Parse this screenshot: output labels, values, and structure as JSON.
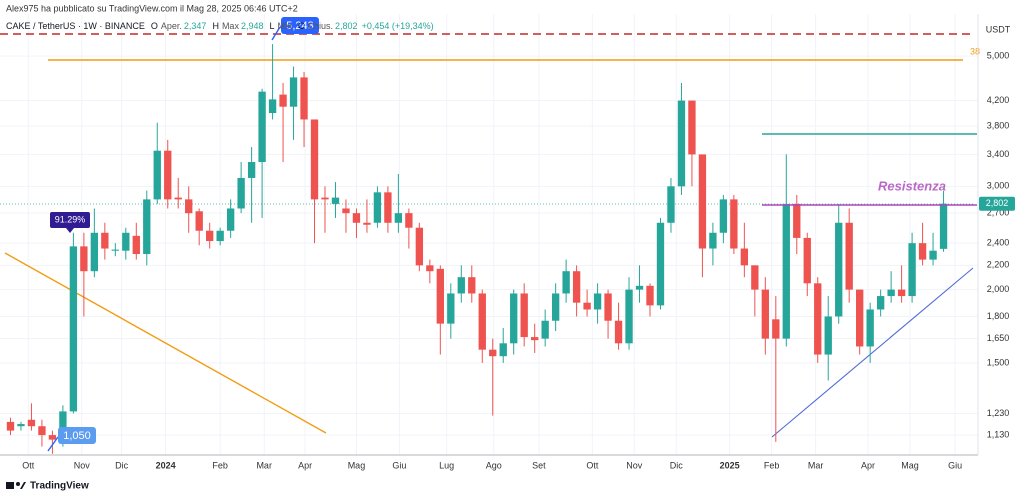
{
  "header": {
    "author_line": "Alex975 ha pubblicato su TradingView.com il Mag 28, 2025 06:46 UTC+2",
    "ohlc": [
      {
        "key": "O",
        "label": "Aper.",
        "value": "2,347"
      },
      {
        "key": "H",
        "label": "Max",
        "value": "2,948"
      },
      {
        "key": "L",
        "label": "Min",
        "value": ""
      },
      {
        "key": "C",
        "label": "Chius.",
        "value": "2,802"
      }
    ],
    "change": "+0,454 (+19,34%)"
  },
  "footer": {
    "brand": "TradingView"
  },
  "chart_data": {
    "type": "candlestick",
    "title": "CAKE / TetherUS · 1W · BINANCE",
    "y_axis_unit": "USDT",
    "up_color": "#26a69a",
    "down_color": "#ef5350",
    "log_scale": true,
    "grid": true,
    "open": [
      1.19,
      1.17,
      1.2,
      1.17,
      1.13,
      1.11,
      1.24,
      2.37,
      2.15,
      2.5,
      2.33,
      2.33,
      2.47,
      2.3,
      2.85,
      3.45,
      2.87,
      2.85,
      2.72,
      2.52,
      2.42,
      2.52,
      2.75,
      3.1,
      3.3,
      4.0,
      4.3,
      4.1,
      4.6,
      3.9,
      2.87,
      2.8,
      2.75,
      2.7,
      2.6,
      2.6,
      2.93,
      2.6,
      2.7,
      2.55,
      2.2,
      2.17,
      1.75,
      1.97,
      2.1,
      1.97,
      1.58,
      1.54,
      1.62,
      1.97,
      1.66,
      1.65,
      1.77,
      1.97,
      2.15,
      1.9,
      1.85,
      1.97,
      1.77,
      1.62,
      2.0,
      2.03,
      1.88,
      2.6,
      3.0,
      4.2,
      3.4,
      2.35,
      2.5,
      2.85,
      2.35,
      2.2,
      2.0,
      1.78,
      1.65,
      2.8,
      2.45,
      2.05,
      1.55,
      1.8,
      2.6,
      2.0,
      1.6,
      1.85,
      1.95,
      2.0,
      1.95,
      2.4,
      2.25,
      2.347
    ],
    "high": [
      1.21,
      1.19,
      1.28,
      1.2,
      1.15,
      1.27,
      2.5,
      2.5,
      2.75,
      2.6,
      2.4,
      2.55,
      2.6,
      2.95,
      3.85,
      3.6,
      3.1,
      3.0,
      2.75,
      2.6,
      2.55,
      2.85,
      3.3,
      3.5,
      4.4,
      5.243,
      4.5,
      4.8,
      4.7,
      3.9,
      3.0,
      3.05,
      2.85,
      2.75,
      2.85,
      3.0,
      3.0,
      3.15,
      2.75,
      2.6,
      2.25,
      2.2,
      2.05,
      2.2,
      2.2,
      2.0,
      1.65,
      1.72,
      2.0,
      2.05,
      1.75,
      1.85,
      2.05,
      2.25,
      2.2,
      2.0,
      2.05,
      2.0,
      1.9,
      2.1,
      2.2,
      2.05,
      2.65,
      3.1,
      4.5,
      4.2,
      3.4,
      2.6,
      2.9,
      2.9,
      2.6,
      2.2,
      2.1,
      1.95,
      3.4,
      2.9,
      2.5,
      2.1,
      1.95,
      2.8,
      2.75,
      2.0,
      1.9,
      2.0,
      2.15,
      2.2,
      2.5,
      2.6,
      2.5,
      2.948
    ],
    "low": [
      1.13,
      1.15,
      1.15,
      1.08,
      1.05,
      1.08,
      1.23,
      1.8,
      2.1,
      2.25,
      2.28,
      2.25,
      2.25,
      2.2,
      2.8,
      2.75,
      2.75,
      2.5,
      2.38,
      2.35,
      2.38,
      2.45,
      2.7,
      2.6,
      2.65,
      3.9,
      3.3,
      3.6,
      3.5,
      2.4,
      2.5,
      2.65,
      2.5,
      2.45,
      2.5,
      2.55,
      2.5,
      2.5,
      2.35,
      2.15,
      2.05,
      1.55,
      1.65,
      1.9,
      1.9,
      1.5,
      1.22,
      1.5,
      1.55,
      1.6,
      1.56,
      1.6,
      1.7,
      1.9,
      1.8,
      1.8,
      1.75,
      1.65,
      1.58,
      1.58,
      1.9,
      1.8,
      1.85,
      2.5,
      2.9,
      3.0,
      2.1,
      2.2,
      2.4,
      2.3,
      2.1,
      1.8,
      1.55,
      1.1,
      1.6,
      2.3,
      1.95,
      1.5,
      1.4,
      1.75,
      1.9,
      1.55,
      1.5,
      1.8,
      1.9,
      1.9,
      1.9,
      2.2,
      2.2,
      2.32
    ],
    "close": [
      1.15,
      1.18,
      1.17,
      1.13,
      1.11,
      1.24,
      2.37,
      2.15,
      2.5,
      2.35,
      2.34,
      2.5,
      2.3,
      2.85,
      3.45,
      2.85,
      2.85,
      2.7,
      2.52,
      2.42,
      2.52,
      2.75,
      3.1,
      3.3,
      4.35,
      4.22,
      4.1,
      4.6,
      3.9,
      2.85,
      2.85,
      2.87,
      2.7,
      2.6,
      2.58,
      2.93,
      2.6,
      2.7,
      2.55,
      2.2,
      2.15,
      1.75,
      1.97,
      2.1,
      1.97,
      1.58,
      1.54,
      1.62,
      1.97,
      1.66,
      1.64,
      1.77,
      1.97,
      2.15,
      1.9,
      1.85,
      1.97,
      1.77,
      1.62,
      2.0,
      2.03,
      1.88,
      2.6,
      3.0,
      4.2,
      3.4,
      2.35,
      2.5,
      2.85,
      2.35,
      2.2,
      2.0,
      1.65,
      1.65,
      2.8,
      2.45,
      2.05,
      1.55,
      1.8,
      2.6,
      2.0,
      1.6,
      1.85,
      1.95,
      2.0,
      1.95,
      2.4,
      2.25,
      2.33,
      2.802
    ],
    "last_price_label": "2,802",
    "xlim": [
      -1,
      92
    ],
    "ylim": [
      1.045,
      5.9
    ],
    "yticks": [
      {
        "value": 5,
        "label": "5,000"
      },
      {
        "value": 4.2,
        "label": "4,200"
      },
      {
        "value": 3.8,
        "label": "3,800"
      },
      {
        "value": 3.4,
        "label": "3,400"
      },
      {
        "value": 3,
        "label": "3,000"
      },
      {
        "value": 2.7,
        "label": "2,700"
      },
      {
        "value": 2.4,
        "label": "2,400"
      },
      {
        "value": 2.2,
        "label": "2,200"
      },
      {
        "value": 2,
        "label": "2,000"
      },
      {
        "value": 1.8,
        "label": "1,800"
      },
      {
        "value": 1.65,
        "label": "1,650"
      },
      {
        "value": 1.5,
        "label": "1,500"
      },
      {
        "value": 1.23,
        "label": "1,230"
      },
      {
        "value": 1.13,
        "label": "1,130"
      }
    ],
    "xticks": [
      {
        "value": 1.7,
        "label": "Ott"
      },
      {
        "value": 6.8,
        "label": "Nov"
      },
      {
        "value": 10.6,
        "label": "Dic"
      },
      {
        "value": 14.8,
        "label": "2024"
      },
      {
        "value": 20.0,
        "label": "Feb"
      },
      {
        "value": 24.2,
        "label": "Mar"
      },
      {
        "value": 28.1,
        "label": "Apr"
      },
      {
        "value": 33.0,
        "label": "Mag"
      },
      {
        "value": 37.1,
        "label": "Giu"
      },
      {
        "value": 41.6,
        "label": "Lug"
      },
      {
        "value": 46.1,
        "label": "Ago"
      },
      {
        "value": 50.4,
        "label": "Set"
      },
      {
        "value": 55.5,
        "label": "Ott"
      },
      {
        "value": 59.5,
        "label": "Nov"
      },
      {
        "value": 63.5,
        "label": "Dic"
      },
      {
        "value": 68.6,
        "label": "2025"
      },
      {
        "value": 72.6,
        "label": "Feb"
      },
      {
        "value": 76.8,
        "label": "Mar"
      },
      {
        "value": 81.8,
        "label": "Apr"
      },
      {
        "value": 85.8,
        "label": "Mag"
      },
      {
        "value": 90.1,
        "label": "Giu"
      }
    ],
    "annotations": {
      "high_label": "5,243",
      "low_label": "1,050",
      "rise_label": "91.29%",
      "resistance_label": "Resistenza",
      "fib_label": "38"
    }
  }
}
